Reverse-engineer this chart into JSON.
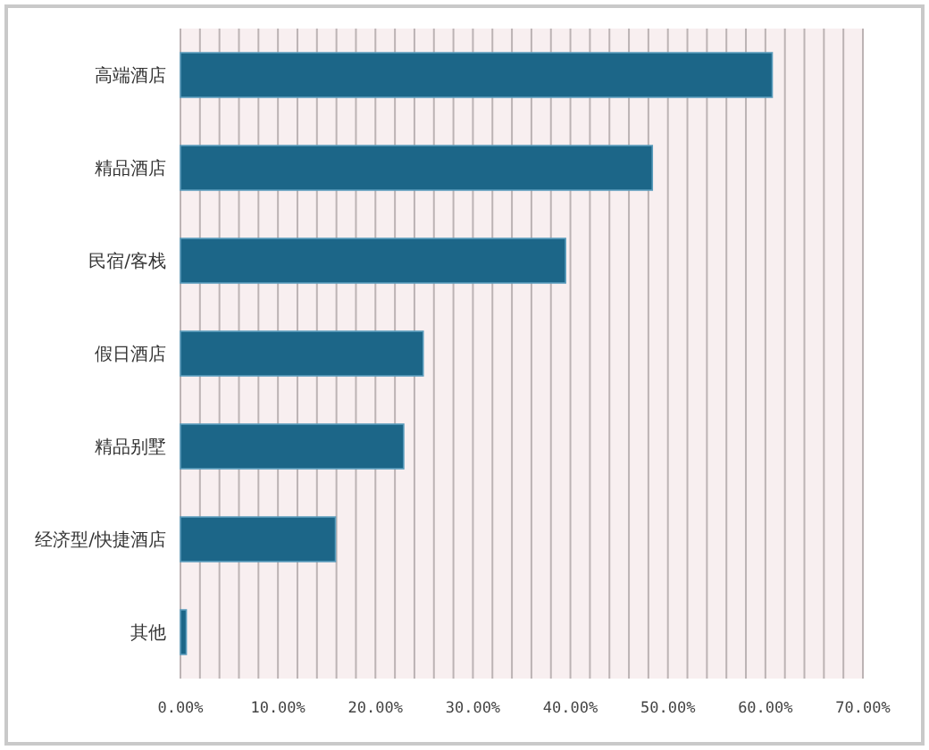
{
  "chart_data": {
    "type": "bar",
    "orientation": "horizontal",
    "categories": [
      "高端酒店",
      "精品酒店",
      "民宿/客栈",
      "假日酒店",
      "精品别墅",
      "经济型/快捷酒店",
      "其他"
    ],
    "values": [
      60.7,
      48.4,
      39.5,
      24.9,
      22.9,
      15.9,
      0.6
    ],
    "color": "#1c6688",
    "xlim": [
      0,
      70
    ],
    "xticks": [
      {
        "value": 0,
        "label": "0.00%"
      },
      {
        "value": 2,
        "label": null
      },
      {
        "value": 4,
        "label": null
      },
      {
        "value": 6,
        "label": null
      },
      {
        "value": 8,
        "label": null
      },
      {
        "value": 10,
        "label": "10.00%"
      },
      {
        "value": 12,
        "label": null
      },
      {
        "value": 14,
        "label": null
      },
      {
        "value": 16,
        "label": null
      },
      {
        "value": 18,
        "label": null
      },
      {
        "value": 20,
        "label": "20.00%"
      },
      {
        "value": 22,
        "label": null
      },
      {
        "value": 24,
        "label": null
      },
      {
        "value": 26,
        "label": null
      },
      {
        "value": 28,
        "label": null
      },
      {
        "value": 30,
        "label": "30.00%"
      },
      {
        "value": 32,
        "label": null
      },
      {
        "value": 34,
        "label": null
      },
      {
        "value": 36,
        "label": null
      },
      {
        "value": 38,
        "label": null
      },
      {
        "value": 40,
        "label": "40.00%"
      },
      {
        "value": 42,
        "label": null
      },
      {
        "value": 44,
        "label": null
      },
      {
        "value": 46,
        "label": null
      },
      {
        "value": 48,
        "label": null
      },
      {
        "value": 50,
        "label": "50.00%"
      },
      {
        "value": 52,
        "label": null
      },
      {
        "value": 54,
        "label": null
      },
      {
        "value": 56,
        "label": null
      },
      {
        "value": 58,
        "label": null
      },
      {
        "value": 60,
        "label": "60.00%"
      },
      {
        "value": 62,
        "label": null
      },
      {
        "value": 64,
        "label": null
      },
      {
        "value": 66,
        "label": null
      },
      {
        "value": 68,
        "label": null
      },
      {
        "value": 70,
        "label": "70.00%"
      }
    ],
    "grid": "x"
  }
}
